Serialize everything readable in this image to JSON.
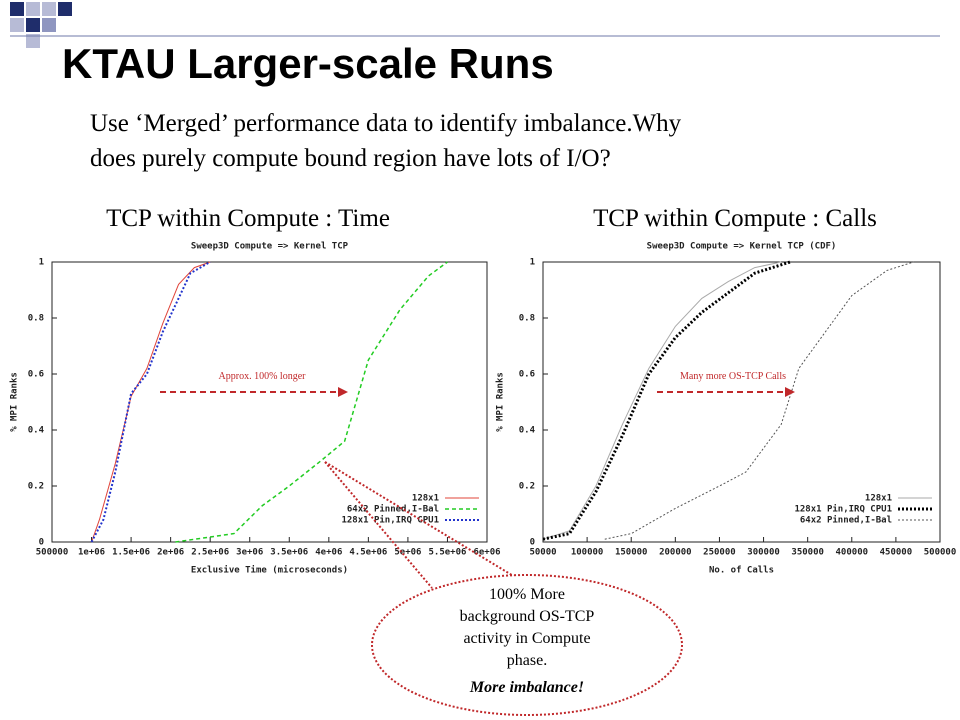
{
  "slide": {
    "title": "KTAU Larger-scale Runs",
    "body": [
      "Use ‘Merged’ performance data to identify imbalance.Why",
      "does purely compute bound region have lots of I/O?"
    ],
    "left_caption": "TCP within Compute : Time",
    "right_caption": "TCP within Compute : Calls",
    "callout": {
      "lines": [
        "100% More",
        "background OS-TCP",
        "activity in Compute",
        "phase."
      ],
      "emphasis": "More imbalance!"
    }
  },
  "chart_data": [
    {
      "type": "line",
      "title": "Sweep3D Compute => Kernel TCP",
      "xlabel": "Exclusive Time (microseconds)",
      "ylabel": "% MPI Ranks",
      "annotation": "Approx. 100% longer",
      "xlim": [
        500000,
        6000000
      ],
      "xticks": [
        500000,
        {
          "value": 1000000,
          "label": "1e+06"
        },
        {
          "value": 1500000,
          "label": "1.5e+06"
        },
        {
          "value": 2000000,
          "label": "2e+06"
        },
        {
          "value": 2500000,
          "label": "2.5e+06"
        },
        {
          "value": 3000000,
          "label": "3e+06"
        },
        {
          "value": 3500000,
          "label": "3.5e+06"
        },
        {
          "value": 4000000,
          "label": "4e+06"
        },
        {
          "value": 4500000,
          "label": "4.5e+06"
        },
        {
          "value": 5000000,
          "label": "5e+06"
        },
        {
          "value": 5500000,
          "label": "5.5e+06"
        },
        {
          "value": 6000000,
          "label": "6e+06"
        }
      ],
      "ylim": [
        0,
        1
      ],
      "yticks": [
        0,
        0.2,
        0.4,
        0.6,
        0.8,
        1
      ],
      "series": [
        {
          "name": "128x1",
          "color": "#e0443a",
          "style": "solid",
          "line_width": 1,
          "x": [
            1000000,
            1100000,
            1300000,
            1500000,
            1700000,
            1900000,
            2100000,
            2300000,
            2500000
          ],
          "values": [
            0,
            0.08,
            0.28,
            0.52,
            0.62,
            0.78,
            0.92,
            0.98,
            1
          ]
        },
        {
          "name": "64x2 Pinned,I-Bal",
          "color": "#22cc22",
          "style": "dashed",
          "line_width": 1.5,
          "x": [
            2060000,
            2800000,
            3160000,
            3500000,
            3900000,
            4200000,
            4500000,
            4900000,
            5260000,
            5500000
          ],
          "values": [
            0,
            0.03,
            0.13,
            0.2,
            0.29,
            0.36,
            0.65,
            0.83,
            0.95,
            1
          ]
        },
        {
          "name": "128x1 Pin,IRQ CPU1",
          "color": "#2233cc",
          "style": "dotted",
          "line_width": 2,
          "x": [
            1000000,
            1150000,
            1300000,
            1500000,
            1700000,
            1900000,
            2100000,
            2250000,
            2500000
          ],
          "values": [
            0,
            0.08,
            0.25,
            0.53,
            0.6,
            0.75,
            0.87,
            0.96,
            1
          ]
        }
      ]
    },
    {
      "type": "line",
      "title": "Sweep3D Compute => Kernel TCP (CDF)",
      "xlabel": "No. of Calls",
      "ylabel": "% MPI Ranks",
      "annotation": "Many more OS-TCP Calls",
      "xlim": [
        50000,
        500000
      ],
      "xticks": [
        50000,
        100000,
        150000,
        200000,
        250000,
        300000,
        350000,
        400000,
        450000,
        500000
      ],
      "ylim": [
        0,
        1
      ],
      "yticks": [
        0,
        0.2,
        0.4,
        0.6,
        0.8,
        1
      ],
      "series": [
        {
          "name": "128x1",
          "color": "#aaaaaa",
          "style": "solid",
          "line_width": 1,
          "x": [
            50000,
            80000,
            110000,
            140000,
            170000,
            200000,
            230000,
            260000,
            290000,
            320000
          ],
          "values": [
            0.01,
            0.04,
            0.2,
            0.42,
            0.62,
            0.77,
            0.87,
            0.93,
            0.98,
            1
          ]
        },
        {
          "name": "128x1 Pin,IRQ CPU1",
          "color": "#000000",
          "style": "dotted",
          "line_width": 3,
          "x": [
            50000,
            80000,
            110000,
            140000,
            170000,
            200000,
            230000,
            260000,
            290000,
            330000
          ],
          "values": [
            0.01,
            0.03,
            0.18,
            0.38,
            0.6,
            0.73,
            0.82,
            0.89,
            0.96,
            1
          ]
        },
        {
          "name": "64x2 Pinned,I-Bal",
          "color": "#555555",
          "style": "dotted",
          "line_width": 1,
          "x": [
            120000,
            150000,
            200000,
            250000,
            280000,
            320000,
            340000,
            370000,
            400000,
            440000,
            470000
          ],
          "values": [
            0.01,
            0.03,
            0.12,
            0.2,
            0.25,
            0.42,
            0.62,
            0.75,
            0.88,
            0.97,
            1
          ]
        }
      ]
    }
  ]
}
